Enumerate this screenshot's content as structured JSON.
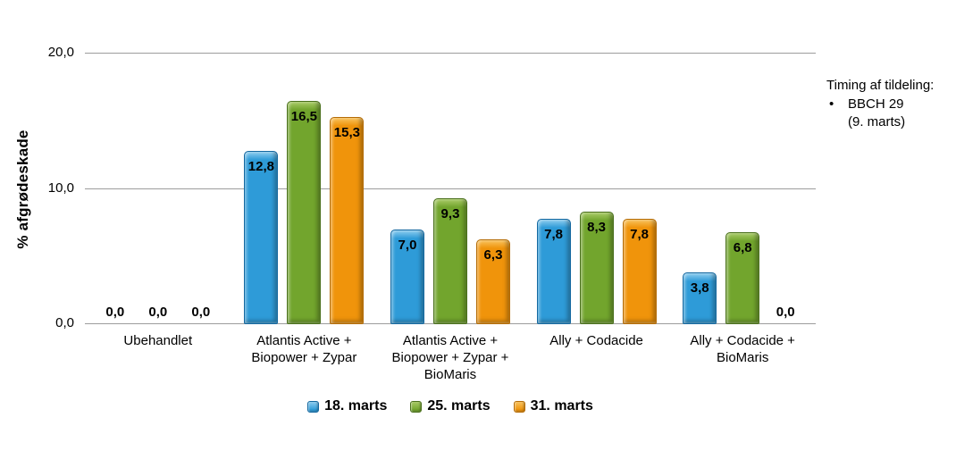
{
  "chart_data": {
    "type": "bar",
    "title": "",
    "ylabel": "% afgrødeskade",
    "xlabel": "",
    "ylim": [
      0,
      20
    ],
    "grid": true,
    "legend_position": "bottom",
    "decimal_separator": ",",
    "gridline_color": "#9d9d9d",
    "yticks": [
      {
        "value": 0,
        "label": "0,0"
      },
      {
        "value": 10,
        "label": "10,0"
      },
      {
        "value": 20,
        "label": "20,0"
      }
    ],
    "categories": [
      "Ubehandlet",
      "Atlantis Active + Biopower + Zypar",
      "Atlantis Active + Biopower + Zypar + BioMaris",
      "Ally + Codacide",
      "Ally + Codacide + BioMaris"
    ],
    "series": [
      {
        "name": "18. marts",
        "color": "#2e9bd8",
        "color_dark": "#1468a0",
        "color_light": "#8ecdef",
        "values": [
          0.0,
          12.8,
          7.0,
          7.8,
          3.8
        ],
        "labels": [
          "0,0",
          "12,8",
          "7,0",
          "7,8",
          "3,8"
        ]
      },
      {
        "name": "25. marts",
        "color": "#72a52d",
        "color_dark": "#4a701c",
        "color_light": "#a9cb67",
        "values": [
          0.0,
          16.5,
          9.3,
          8.3,
          6.8
        ],
        "labels": [
          "0,0",
          "16,5",
          "9,3",
          "8,3",
          "6,8"
        ]
      },
      {
        "name": "31. marts",
        "color": "#f0940b",
        "color_dark": "#b56c06",
        "color_light": "#f9c35e",
        "values": [
          0.0,
          15.3,
          6.3,
          7.8,
          0.0
        ],
        "labels": [
          "0,0",
          "15,3",
          "6,3",
          "7,8",
          "0,0"
        ]
      }
    ]
  },
  "annotation": {
    "title": "Timing af tildeling:",
    "bullet_glyph": "•",
    "bullet": "BBCH 29",
    "bullet_sub": "(9. marts)"
  }
}
